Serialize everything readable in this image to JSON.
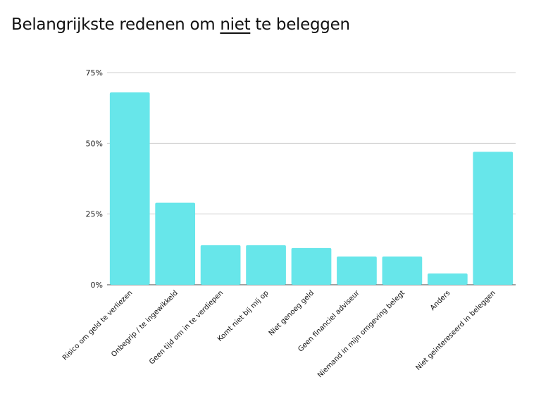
{
  "title": {
    "before": "Belangrijkste redenen om ",
    "underlined": "niet",
    "after": " te beleggen"
  },
  "chart_data": {
    "type": "bar",
    "title": "Belangrijkste redenen om niet te beleggen",
    "xlabel": "",
    "ylabel": "",
    "ylim": [
      0,
      75
    ],
    "yticks": [
      0,
      25,
      50,
      75
    ],
    "ytick_labels": [
      "0%",
      "25%",
      "50%",
      "75%"
    ],
    "grid": true,
    "bar_color": "#67e6ea",
    "categories": [
      "Risico om geld te verliezen",
      "Onbegrip / te ingewikkeld",
      "Geen tijd om in te verdiepen",
      "Komt niet bij mij op",
      "Niet genoeg geld",
      "Geen financiel adviseur",
      "Niemand in mijn omgeving belegt",
      "Anders",
      "Niet geintereseerd in beleggen"
    ],
    "values": [
      68,
      29,
      14,
      14,
      13,
      10,
      10,
      4,
      47
    ]
  }
}
